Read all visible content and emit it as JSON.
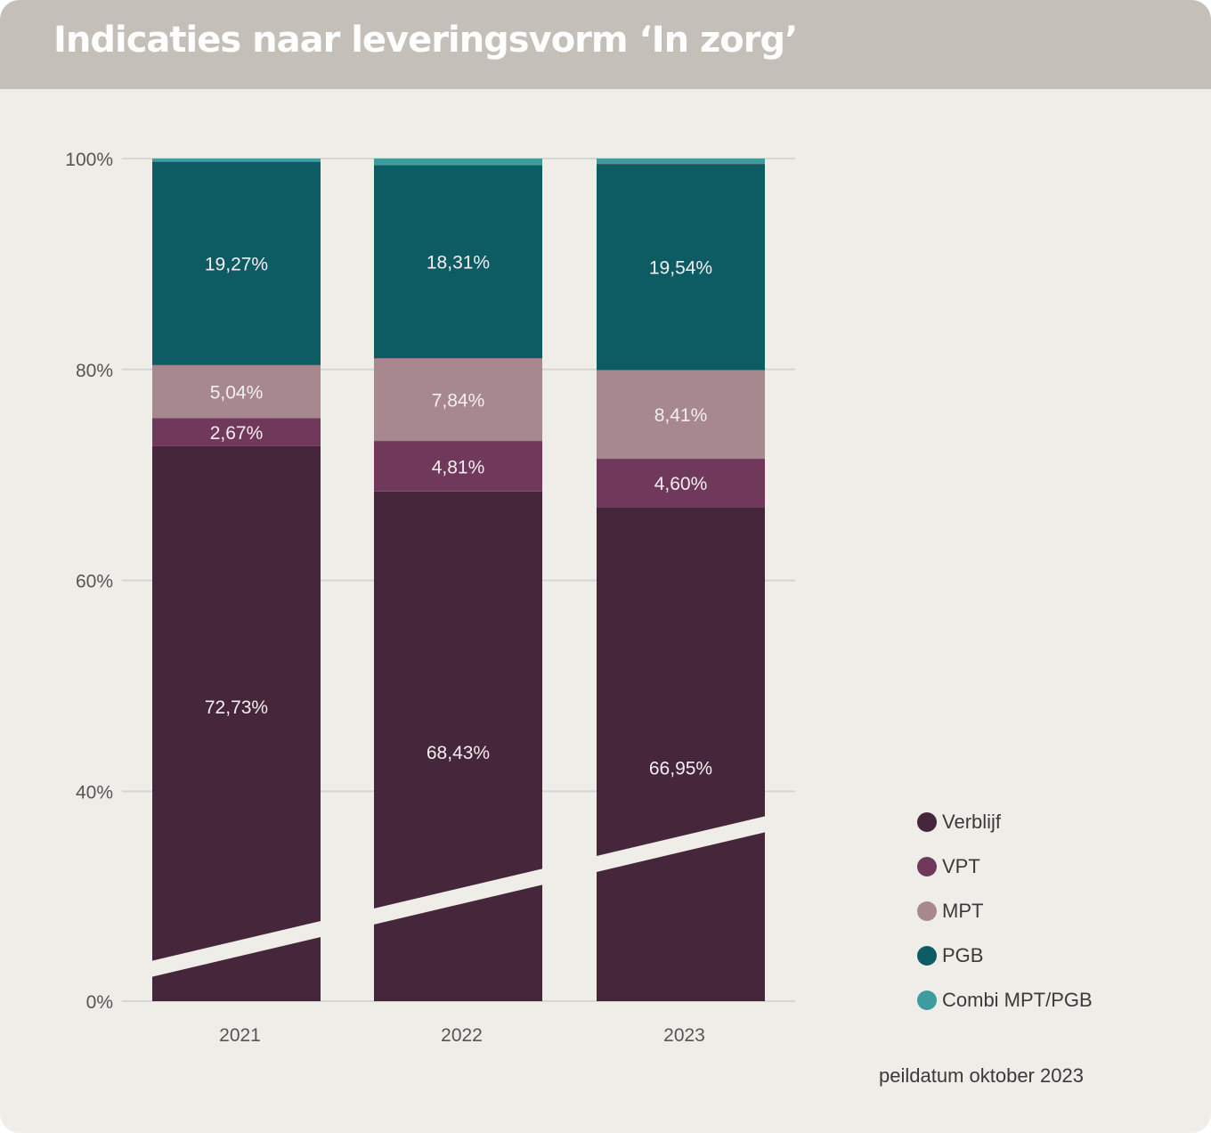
{
  "title": "Indicaties naar leveringsvorm ‘In zorg’",
  "footnote": "peildatum oktober 2023",
  "colors": {
    "header": "#c4bfb8",
    "background": "#efede8",
    "gridline": "#d8d4d6",
    "axis_text": "#555555",
    "data_label": "#f4eef0"
  },
  "chart_data": {
    "type": "bar",
    "stacked": true,
    "normalized": true,
    "categories": [
      "2021",
      "2022",
      "2023"
    ],
    "yticks": [
      "0%",
      "40%",
      "60%",
      "80%",
      "100%"
    ],
    "ylim": [
      0,
      100
    ],
    "axis_break": true,
    "grid": true,
    "legend_position": "right",
    "series": [
      {
        "name": "Verblijf",
        "color": "#46263a",
        "values": [
          72.73,
          68.43,
          66.95
        ],
        "labels": [
          "72,73%",
          "68,43%",
          "66,95%"
        ]
      },
      {
        "name": "VPT",
        "color": "#70385a",
        "values": [
          2.67,
          4.81,
          4.6
        ],
        "labels": [
          "2,67%",
          "4,81%",
          "4,60%"
        ]
      },
      {
        "name": "MPT",
        "color": "#a8888f",
        "values": [
          5.04,
          7.84,
          8.41
        ],
        "labels": [
          "5,04%",
          "7,84%",
          "8,41%"
        ]
      },
      {
        "name": "PGB",
        "color": "#0e5c63",
        "values": [
          19.27,
          18.31,
          19.54
        ],
        "labels": [
          "19,27%",
          "18,31%",
          "19,54%"
        ]
      },
      {
        "name": "Combi MPT/PGB",
        "color": "#3e9c9f",
        "values": [
          0.29,
          0.61,
          0.5
        ],
        "labels": [
          "",
          "",
          ""
        ]
      }
    ]
  }
}
